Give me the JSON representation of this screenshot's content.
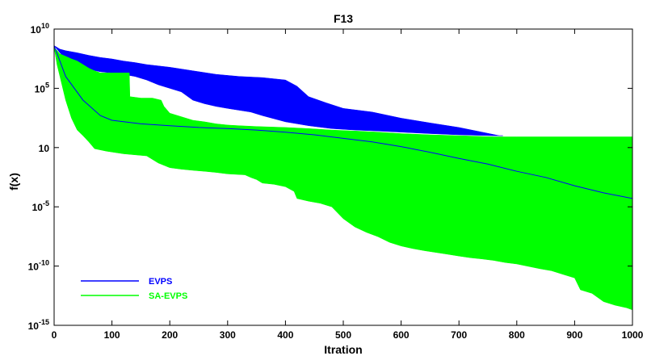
{
  "chart_data": {
    "type": "area",
    "title": "F13",
    "xlabel": "Itration",
    "ylabel": "f(x)",
    "yscale": "log",
    "xlim": [
      0,
      1000
    ],
    "ylim": [
      1e-15,
      10000000000.0
    ],
    "xticks": [
      0,
      100,
      200,
      300,
      400,
      500,
      600,
      700,
      800,
      900,
      1000
    ],
    "xtick_labels": [
      "0",
      "100",
      "200",
      "300",
      "400",
      "500",
      "600",
      "700",
      "800",
      "900",
      "1000"
    ],
    "yticks": [
      1e-15,
      1e-10,
      1e-05,
      1,
      100000.0,
      10000000000.0
    ],
    "ytick_labels": [
      {
        "base": "10",
        "exp": "-15"
      },
      {
        "base": "10",
        "exp": "-10"
      },
      {
        "base": "10",
        "exp": "-5"
      },
      {
        "base": "10",
        "exp": "0",
        "text": "10"
      },
      {
        "base": "10",
        "exp": "5"
      },
      {
        "base": "10",
        "exp": "10"
      }
    ],
    "grid": false,
    "legend": "bottom-left",
    "series": [
      {
        "name": "EVPS",
        "color": "#0000ff",
        "upper": [
          [
            0,
            400000000.0
          ],
          [
            10,
            200000000.0
          ],
          [
            20,
            150000000.0
          ],
          [
            40,
            100000000.0
          ],
          [
            60,
            60000000.0
          ],
          [
            80,
            40000000.0
          ],
          [
            100,
            30000000.0
          ],
          [
            120,
            20000000.0
          ],
          [
            140,
            15000000.0
          ],
          [
            160,
            10000000.0
          ],
          [
            200,
            6000000.0
          ],
          [
            240,
            3000000.0
          ],
          [
            280,
            1500000.0
          ],
          [
            320,
            1000000.0
          ],
          [
            360,
            800000.0
          ],
          [
            400,
            500000.0
          ],
          [
            420,
            150000.0
          ],
          [
            440,
            20000.0
          ],
          [
            470,
            6000.0
          ],
          [
            500,
            2000.0
          ],
          [
            550,
            1000.0
          ],
          [
            600,
            300
          ],
          [
            650,
            120
          ],
          [
            700,
            50
          ],
          [
            740,
            20
          ],
          [
            770,
            10
          ],
          [
            776,
            10
          ]
        ],
        "lower": [
          [
            0,
            400000000.0
          ],
          [
            10,
            100000000.0
          ],
          [
            20,
            30000000.0
          ],
          [
            40,
            10000000.0
          ],
          [
            60,
            4000000.0
          ],
          [
            80,
            2500000.0
          ],
          [
            100,
            2000000.0
          ],
          [
            120,
            1500000.0
          ],
          [
            140,
            1000000.0
          ],
          [
            160,
            500000.0
          ],
          [
            180,
            200000.0
          ],
          [
            200,
            100000.0
          ],
          [
            220,
            50000.0
          ],
          [
            240,
            10000.0
          ],
          [
            260,
            5000.0
          ],
          [
            280,
            3000.0
          ],
          [
            300,
            2000.0
          ],
          [
            340,
            1000.0
          ],
          [
            360,
            500
          ],
          [
            400,
            150
          ],
          [
            440,
            70
          ],
          [
            480,
            40
          ],
          [
            520,
            30
          ],
          [
            560,
            25
          ],
          [
            600,
            20
          ],
          [
            650,
            15
          ],
          [
            700,
            12
          ],
          [
            760,
            10
          ],
          [
            776,
            10
          ]
        ],
        "median": [
          [
            0,
            400000000.0
          ],
          [
            20,
            1000000.0
          ],
          [
            50,
            10000.0
          ],
          [
            80,
            500
          ],
          [
            100,
            200
          ],
          [
            150,
            100
          ],
          [
            200,
            70
          ],
          [
            250,
            50
          ],
          [
            300,
            40
          ],
          [
            350,
            30
          ],
          [
            400,
            20
          ],
          [
            450,
            12
          ],
          [
            500,
            6
          ],
          [
            550,
            3
          ],
          [
            600,
            1.2
          ],
          [
            650,
            0.4
          ],
          [
            700,
            0.12
          ],
          [
            750,
            0.04
          ],
          [
            800,
            0.01
          ],
          [
            850,
            0.003
          ],
          [
            900,
            0.0006
          ],
          [
            950,
            0.00015
          ],
          [
            1000,
            5e-05
          ]
        ]
      },
      {
        "name": "SA-EVPS",
        "color": "#00ff00",
        "upper": [
          [
            0,
            300000000.0
          ],
          [
            10,
            80000000.0
          ],
          [
            20,
            50000000.0
          ],
          [
            30,
            30000000.0
          ],
          [
            40,
            20000000.0
          ],
          [
            50,
            10000000.0
          ],
          [
            60,
            5000000.0
          ],
          [
            70,
            3000000.0
          ],
          [
            80,
            2000000.0
          ],
          [
            90,
            2000000.0
          ],
          [
            100,
            2000000.0
          ],
          [
            130,
            2000000.0
          ],
          [
            131,
            20000.0
          ],
          [
            150,
            15000.0
          ],
          [
            170,
            15000.0
          ],
          [
            185,
            10000.0
          ],
          [
            190,
            3000.0
          ],
          [
            200,
            800
          ],
          [
            220,
            400
          ],
          [
            240,
            200
          ],
          [
            260,
            150
          ],
          [
            280,
            100
          ],
          [
            300,
            80
          ],
          [
            320,
            70
          ],
          [
            350,
            60
          ],
          [
            400,
            50
          ],
          [
            440,
            40
          ],
          [
            480,
            30
          ],
          [
            520,
            25
          ],
          [
            560,
            20
          ],
          [
            600,
            15
          ],
          [
            650,
            12
          ],
          [
            700,
            10
          ],
          [
            760,
            8
          ],
          [
            800,
            8
          ],
          [
            1000,
            8
          ]
        ],
        "lower": [
          [
            0,
            300000000.0
          ],
          [
            5,
            10000000.0
          ],
          [
            10,
            1000000.0
          ],
          [
            20,
            10000.0
          ],
          [
            30,
            300
          ],
          [
            40,
            30
          ],
          [
            50,
            10
          ],
          [
            60,
            3
          ],
          [
            70,
            0.8
          ],
          [
            90,
            0.5
          ],
          [
            120,
            0.3
          ],
          [
            160,
            0.2
          ],
          [
            180,
            0.05
          ],
          [
            200,
            0.02
          ],
          [
            220,
            0.015
          ],
          [
            240,
            0.012
          ],
          [
            260,
            0.01
          ],
          [
            280,
            0.008
          ],
          [
            300,
            0.006
          ],
          [
            330,
            0.005
          ],
          [
            340,
            0.003
          ],
          [
            350,
            0.002
          ],
          [
            360,
            0.001
          ],
          [
            380,
            0.0008
          ],
          [
            400,
            0.0005
          ],
          [
            415,
            0.0002
          ],
          [
            420,
            5e-05
          ],
          [
            440,
            3e-05
          ],
          [
            460,
            2e-05
          ],
          [
            480,
            1e-05
          ],
          [
            500,
            1e-06
          ],
          [
            520,
            2e-07
          ],
          [
            540,
            7e-08
          ],
          [
            560,
            3e-08
          ],
          [
            580,
            1e-08
          ],
          [
            600,
            5e-09
          ],
          [
            620,
            3e-09
          ],
          [
            640,
            2e-09
          ],
          [
            680,
            1e-09
          ],
          [
            700,
            7e-10
          ],
          [
            720,
            5e-10
          ],
          [
            740,
            4e-10
          ],
          [
            760,
            3e-10
          ],
          [
            780,
            2e-10
          ],
          [
            800,
            1.5e-10
          ],
          [
            840,
            6e-11
          ],
          [
            860,
            4e-11
          ],
          [
            880,
            2e-11
          ],
          [
            900,
            1e-11
          ],
          [
            910,
            1e-12
          ],
          [
            930,
            5e-13
          ],
          [
            950,
            1e-13
          ],
          [
            970,
            5e-14
          ],
          [
            990,
            3e-14
          ],
          [
            1000,
            2e-14
          ]
        ]
      }
    ]
  }
}
